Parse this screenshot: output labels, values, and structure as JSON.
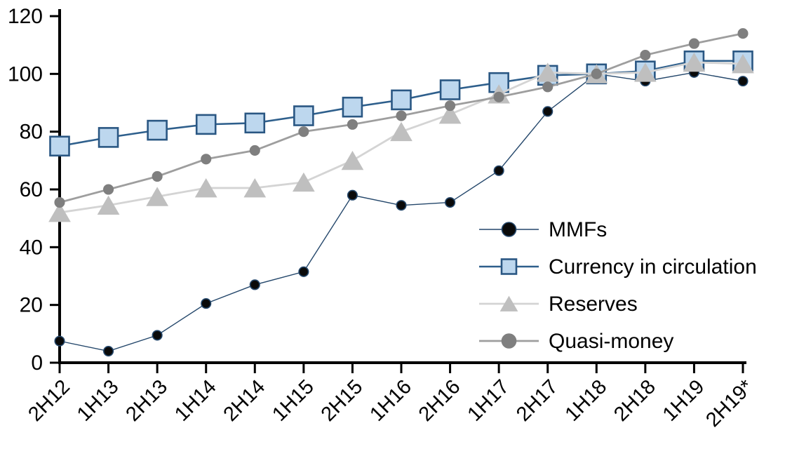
{
  "chart_data": {
    "type": "line",
    "title": "",
    "xlabel": "",
    "ylabel": "",
    "ylim": [
      0,
      120
    ],
    "ytick_step": 20,
    "ytick_labels": [
      "0",
      "20",
      "40",
      "60",
      "80",
      "100",
      "120"
    ],
    "grid": false,
    "legend_position": "inside-right",
    "axis_color": "#000000",
    "background_color": "#ffffff",
    "categories": [
      "2H12",
      "1H13",
      "2H13",
      "1H14",
      "2H14",
      "1H15",
      "2H15",
      "1H16",
      "2H16",
      "1H17",
      "2H17",
      "1H18",
      "2H18",
      "1H19",
      "2H19*"
    ],
    "series": [
      {
        "name": "MMFs",
        "marker": "circle",
        "marker_fill": "#0a0a0a",
        "marker_stroke": "#24476b",
        "line_color": "#24476b",
        "line_width": 1.4,
        "marker_size": 13.5,
        "values": [
          7.5,
          4,
          9.5,
          20.5,
          27,
          31.5,
          58,
          54.5,
          55.5,
          66.5,
          87,
          100,
          97.5,
          100.5,
          97.5
        ]
      },
      {
        "name": "Currency in circulation",
        "marker": "square",
        "marker_fill": "#bdd7ee",
        "marker_stroke": "#2a5783",
        "line_color": "#2e5f8c",
        "line_width": 2.6,
        "marker_size": 27,
        "values": [
          75,
          78,
          80.5,
          82.5,
          83,
          85.5,
          88.5,
          91,
          94.5,
          97,
          99.5,
          100,
          101,
          104.5,
          104.5
        ]
      },
      {
        "name": "Reserves",
        "marker": "triangle",
        "marker_fill": "#bfbfbf",
        "marker_stroke": "#bfbfbf",
        "line_color": "#d4d4d4",
        "line_width": 2.8,
        "marker_size": 30,
        "values": [
          52,
          54.5,
          57.5,
          60.5,
          60.5,
          62.5,
          70,
          80,
          86,
          93,
          100.5,
          100,
          100.5,
          104,
          103.5
        ]
      },
      {
        "name": "Quasi-money",
        "marker": "circle",
        "marker_fill": "#7f7f7f",
        "marker_stroke": "#7f7f7f",
        "line_color": "#9e9e9e",
        "line_width": 2.8,
        "marker_size": 13.5,
        "values": [
          55.5,
          60,
          64.5,
          70.5,
          73.5,
          80,
          82.5,
          85.5,
          89,
          92,
          95.5,
          100,
          106.5,
          110.5,
          114
        ]
      }
    ]
  }
}
